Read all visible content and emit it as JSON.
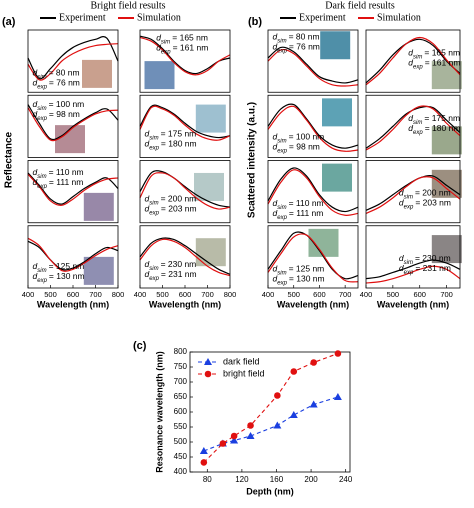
{
  "panel_a": {
    "label": "(a)",
    "title": "Bright field results",
    "y_label": "Reflectance"
  },
  "panel_b": {
    "label": "(b)",
    "title": "Dark field results",
    "y_label": "Scattered intensity (a.u.)"
  },
  "chart_data": [
    {
      "type": "line",
      "x": [
        400,
        450,
        500,
        550,
        600,
        650,
        700,
        750,
        800
      ],
      "xlim": [
        400,
        800
      ],
      "ylim": [
        0,
        1
      ],
      "swatch": "#c9a08e",
      "annotations": [
        [
          "d",
          "sim",
          "= 80 nm"
        ],
        [
          "d",
          "exp",
          "= 76 nm"
        ]
      ],
      "series": [
        {
          "name": "Experiment",
          "color": "#000000",
          "values": [
            0.55,
            0.22,
            0.38,
            0.58,
            0.72,
            0.8,
            0.85,
            0.87,
            0.5
          ]
        },
        {
          "name": "Simulation",
          "color": "#e01010",
          "values": [
            0.45,
            0.2,
            0.3,
            0.5,
            0.62,
            0.7,
            0.75,
            0.77,
            0.78
          ]
        }
      ]
    },
    {
      "type": "line",
      "x": [
        400,
        450,
        500,
        550,
        600,
        650,
        700,
        750,
        800
      ],
      "xlim": [
        400,
        800
      ],
      "ylim": [
        0,
        1
      ],
      "swatch": "#b58b95",
      "annotations": [
        [
          "d",
          "sim",
          "= 100 nm"
        ],
        [
          "d",
          "exp",
          "= 98 nm"
        ]
      ],
      "series": [
        {
          "name": "Experiment",
          "color": "#000000",
          "values": [
            0.85,
            0.55,
            0.3,
            0.35,
            0.5,
            0.62,
            0.72,
            0.78,
            0.6
          ]
        },
        {
          "name": "Simulation",
          "color": "#e01010",
          "values": [
            0.8,
            0.5,
            0.28,
            0.33,
            0.48,
            0.6,
            0.7,
            0.75,
            0.76
          ]
        }
      ]
    },
    {
      "type": "line",
      "x": [
        400,
        450,
        500,
        550,
        600,
        650,
        700,
        750,
        800
      ],
      "xlim": [
        400,
        800
      ],
      "ylim": [
        0,
        1
      ],
      "swatch": "#9888a8",
      "annotations": [
        [
          "d",
          "sim",
          "= 110 nm"
        ],
        [
          "d",
          "exp",
          "= 111 nm"
        ]
      ],
      "series": [
        {
          "name": "Experiment",
          "color": "#000000",
          "values": [
            0.8,
            0.6,
            0.38,
            0.3,
            0.42,
            0.55,
            0.65,
            0.72,
            0.55
          ]
        },
        {
          "name": "Simulation",
          "color": "#e01010",
          "values": [
            0.78,
            0.58,
            0.35,
            0.28,
            0.38,
            0.52,
            0.63,
            0.7,
            0.72
          ]
        }
      ]
    },
    {
      "type": "line",
      "x": [
        400,
        450,
        500,
        550,
        600,
        650,
        700,
        750,
        800
      ],
      "xlim": [
        400,
        800
      ],
      "ylim": [
        0,
        1
      ],
      "swatch": "#8f8fb2",
      "xticks": [
        400,
        500,
        600,
        700,
        800
      ],
      "x_label": "Wavelength (nm)",
      "annotations": [
        [
          "d",
          "sim",
          "= 125 nm"
        ],
        [
          "d",
          "exp",
          "= 130 nm"
        ]
      ],
      "series": [
        {
          "name": "Experiment",
          "color": "#000000",
          "values": [
            0.75,
            0.65,
            0.45,
            0.3,
            0.32,
            0.42,
            0.55,
            0.65,
            0.6
          ]
        },
        {
          "name": "Simulation",
          "color": "#e01010",
          "values": [
            0.8,
            0.68,
            0.45,
            0.28,
            0.3,
            0.4,
            0.52,
            0.62,
            0.68
          ]
        }
      ]
    },
    {
      "type": "line",
      "x": [
        400,
        450,
        500,
        550,
        600,
        650,
        700,
        750,
        800
      ],
      "xlim": [
        400,
        800
      ],
      "ylim": [
        0,
        1
      ],
      "swatch": "#6f8fb8",
      "annotations": [
        [
          "d",
          "sim",
          "= 165 nm"
        ],
        [
          "d",
          "exp",
          "= 161 nm"
        ]
      ],
      "series": [
        {
          "name": "Experiment",
          "color": "#000000",
          "values": [
            0.9,
            0.85,
            0.7,
            0.5,
            0.35,
            0.3,
            0.38,
            0.5,
            0.55
          ]
        },
        {
          "name": "Simulation",
          "color": "#e01010",
          "values": [
            0.88,
            0.82,
            0.68,
            0.48,
            0.33,
            0.28,
            0.35,
            0.5,
            0.6
          ]
        }
      ]
    },
    {
      "type": "line",
      "x": [
        400,
        450,
        500,
        550,
        600,
        650,
        700,
        750,
        800
      ],
      "xlim": [
        400,
        800
      ],
      "ylim": [
        0,
        1
      ],
      "swatch": "#9ec0d0",
      "annotations": [
        [
          "d",
          "sim",
          "= 175 nm"
        ],
        [
          "d",
          "exp",
          "= 180 nm"
        ]
      ],
      "series": [
        {
          "name": "Experiment",
          "color": "#000000",
          "values": [
            0.5,
            0.82,
            0.8,
            0.7,
            0.55,
            0.42,
            0.35,
            0.32,
            0.35
          ]
        },
        {
          "name": "Simulation",
          "color": "#e01010",
          "values": [
            0.45,
            0.8,
            0.78,
            0.68,
            0.52,
            0.38,
            0.3,
            0.28,
            0.35
          ]
        }
      ]
    },
    {
      "type": "line",
      "x": [
        400,
        450,
        500,
        550,
        600,
        650,
        700,
        750,
        800
      ],
      "xlim": [
        400,
        800
      ],
      "ylim": [
        0,
        1
      ],
      "swatch": "#b5c9c8",
      "annotations": [
        [
          "d",
          "sim",
          "= 200 nm"
        ],
        [
          "d",
          "exp",
          "= 203 nm"
        ]
      ],
      "series": [
        {
          "name": "Experiment",
          "color": "#000000",
          "values": [
            0.5,
            0.8,
            0.82,
            0.72,
            0.58,
            0.45,
            0.35,
            0.28,
            0.25
          ]
        },
        {
          "name": "Simulation",
          "color": "#e01010",
          "values": [
            0.4,
            0.75,
            0.8,
            0.72,
            0.56,
            0.4,
            0.28,
            0.22,
            0.25
          ]
        }
      ]
    },
    {
      "type": "line",
      "x": [
        400,
        450,
        500,
        550,
        600,
        650,
        700,
        750,
        800
      ],
      "xlim": [
        400,
        800
      ],
      "ylim": [
        0,
        1
      ],
      "swatch": "#b8bba8",
      "xticks": [
        400,
        500,
        600,
        700,
        800
      ],
      "x_label": "Wavelength (nm)",
      "annotations": [
        [
          "d",
          "sim",
          "= 230 nm"
        ],
        [
          "d",
          "exp",
          "= 231 nm"
        ]
      ],
      "series": [
        {
          "name": "Experiment",
          "color": "#000000",
          "values": [
            0.5,
            0.72,
            0.8,
            0.78,
            0.68,
            0.55,
            0.42,
            0.3,
            0.22
          ]
        },
        {
          "name": "Simulation",
          "color": "#e01010",
          "values": [
            0.45,
            0.68,
            0.78,
            0.75,
            0.65,
            0.5,
            0.35,
            0.25,
            0.2
          ]
        }
      ]
    },
    {
      "type": "line",
      "x": [
        400,
        450,
        500,
        550,
        600,
        650,
        700,
        750
      ],
      "xlim": [
        400,
        750
      ],
      "ylim": [
        0,
        1
      ],
      "swatch": "#4f8fa8",
      "annotations": [
        [
          "d",
          "sim",
          "= 80 nm"
        ],
        [
          "d",
          "exp",
          "= 76 nm"
        ]
      ],
      "series": [
        {
          "name": "Experiment",
          "color": "#000000",
          "values": [
            0.55,
            0.72,
            0.65,
            0.45,
            0.25,
            0.18,
            0.15,
            0.2
          ]
        },
        {
          "name": "Simulation",
          "color": "#e01010",
          "values": [
            0.5,
            0.68,
            0.62,
            0.42,
            0.22,
            0.12,
            0.1,
            0.12
          ]
        }
      ]
    },
    {
      "type": "line",
      "x": [
        400,
        450,
        500,
        550,
        600,
        650,
        700,
        750
      ],
      "xlim": [
        400,
        750
      ],
      "ylim": [
        0,
        1
      ],
      "swatch": "#5da2b5",
      "annotations": [
        [
          "d",
          "sim",
          "= 100 nm"
        ],
        [
          "d",
          "exp",
          "= 98 nm"
        ]
      ],
      "series": [
        {
          "name": "Experiment",
          "color": "#000000",
          "values": [
            0.5,
            0.78,
            0.85,
            0.62,
            0.35,
            0.2,
            0.15,
            0.2
          ]
        },
        {
          "name": "Simulation",
          "color": "#e01010",
          "values": [
            0.45,
            0.72,
            0.82,
            0.6,
            0.32,
            0.15,
            0.1,
            0.12
          ]
        }
      ]
    },
    {
      "type": "line",
      "x": [
        400,
        450,
        500,
        550,
        600,
        650,
        700,
        750
      ],
      "xlim": [
        400,
        750
      ],
      "ylim": [
        0,
        1
      ],
      "swatch": "#6ba7a0",
      "annotations": [
        [
          "d",
          "sim",
          "= 110 nm"
        ],
        [
          "d",
          "exp",
          "= 111 nm"
        ]
      ],
      "series": [
        {
          "name": "Experiment",
          "color": "#000000",
          "values": [
            0.35,
            0.7,
            0.88,
            0.75,
            0.45,
            0.25,
            0.18,
            0.25
          ]
        },
        {
          "name": "Simulation",
          "color": "#e01010",
          "values": [
            0.3,
            0.65,
            0.85,
            0.72,
            0.42,
            0.2,
            0.12,
            0.15
          ]
        }
      ]
    },
    {
      "type": "line",
      "x": [
        400,
        450,
        500,
        550,
        600,
        650,
        700,
        750
      ],
      "xlim": [
        400,
        750
      ],
      "ylim": [
        0,
        1
      ],
      "swatch": "#8fb49a",
      "xticks": [
        400,
        500,
        600,
        700
      ],
      "x_label": "Wavelength (nm)",
      "annotations": [
        [
          "d",
          "sim",
          "= 125 nm"
        ],
        [
          "d",
          "exp",
          "= 130 nm"
        ]
      ],
      "series": [
        {
          "name": "Experiment",
          "color": "#000000",
          "values": [
            0.3,
            0.6,
            0.88,
            0.85,
            0.6,
            0.3,
            0.15,
            0.2
          ]
        },
        {
          "name": "Simulation",
          "color": "#e01010",
          "values": [
            0.25,
            0.55,
            0.82,
            0.85,
            0.62,
            0.32,
            0.12,
            0.1
          ]
        }
      ]
    },
    {
      "type": "line",
      "x": [
        400,
        450,
        500,
        550,
        600,
        650,
        700,
        750
      ],
      "xlim": [
        400,
        750
      ],
      "ylim": [
        0,
        1
      ],
      "swatch": "#a8b49c",
      "annotations": [
        [
          "d",
          "sim",
          "= 165 nm"
        ],
        [
          "d",
          "exp",
          "= 161 nm"
        ]
      ],
      "series": [
        {
          "name": "Experiment",
          "color": "#000000",
          "values": [
            0.15,
            0.35,
            0.6,
            0.78,
            0.85,
            0.75,
            0.5,
            0.3
          ]
        },
        {
          "name": "Simulation",
          "color": "#e01010",
          "values": [
            0.12,
            0.3,
            0.55,
            0.78,
            0.88,
            0.78,
            0.52,
            0.28
          ]
        }
      ]
    },
    {
      "type": "line",
      "x": [
        400,
        450,
        500,
        550,
        600,
        650,
        700,
        750
      ],
      "xlim": [
        400,
        750
      ],
      "ylim": [
        0,
        1
      ],
      "swatch": "#9aa88c",
      "annotations": [
        [
          "d",
          "sim",
          "= 175 nm"
        ],
        [
          "d",
          "exp",
          "= 180 nm"
        ]
      ],
      "series": [
        {
          "name": "Experiment",
          "color": "#000000",
          "values": [
            0.15,
            0.3,
            0.5,
            0.7,
            0.8,
            0.8,
            0.6,
            0.4
          ]
        },
        {
          "name": "Simulation",
          "color": "#e01010",
          "values": [
            0.12,
            0.25,
            0.45,
            0.68,
            0.82,
            0.78,
            0.55,
            0.35
          ]
        }
      ]
    },
    {
      "type": "line",
      "x": [
        400,
        450,
        500,
        550,
        600,
        650,
        700,
        750
      ],
      "xlim": [
        400,
        750
      ],
      "ylim": [
        0,
        1
      ],
      "swatch": "#9c8f80",
      "annotations": [
        [
          "d",
          "sim",
          "= 200 nm"
        ],
        [
          "d",
          "exp",
          "= 203 nm"
        ]
      ],
      "series": [
        {
          "name": "Experiment",
          "color": "#000000",
          "values": [
            0.2,
            0.3,
            0.45,
            0.6,
            0.72,
            0.75,
            0.6,
            0.45
          ]
        },
        {
          "name": "Simulation",
          "color": "#e01010",
          "values": [
            0.15,
            0.25,
            0.4,
            0.58,
            0.72,
            0.72,
            0.55,
            0.38
          ]
        }
      ]
    },
    {
      "type": "line",
      "x": [
        400,
        450,
        500,
        550,
        600,
        650,
        700,
        750
      ],
      "xlim": [
        400,
        750
      ],
      "ylim": [
        0,
        1
      ],
      "swatch": "#8a8585",
      "xticks": [
        400,
        500,
        600,
        700
      ],
      "x_label": "Wavelength (nm)",
      "annotations": [
        [
          "d",
          "sim",
          "= 230 nm"
        ],
        [
          "d",
          "exp",
          "= 231 nm"
        ]
      ],
      "series": [
        {
          "name": "Experiment",
          "color": "#000000",
          "values": [
            0.15,
            0.18,
            0.25,
            0.32,
            0.4,
            0.45,
            0.4,
            0.3
          ]
        },
        {
          "name": "Simulation",
          "color": "#e01010",
          "values": [
            0.08,
            0.1,
            0.15,
            0.22,
            0.3,
            0.35,
            0.3,
            0.15
          ]
        }
      ]
    },
    {
      "type": "scatter-line",
      "panel_label": "(c)",
      "x_label": "Depth (nm)",
      "y_label": "Resonance wavelength (nm)",
      "x": [
        76,
        98,
        111,
        130,
        161,
        180,
        203,
        231
      ],
      "xlim": [
        60,
        245
      ],
      "xticks": [
        80,
        120,
        160,
        200,
        240
      ],
      "ylim": [
        400,
        800
      ],
      "yticks": [
        400,
        450,
        500,
        550,
        600,
        650,
        700,
        750,
        800
      ],
      "legend": "upper left",
      "series": [
        {
          "name": "dark field",
          "color": "#1a3fe0",
          "marker": "triangle",
          "values": [
            470,
            495,
            505,
            520,
            555,
            590,
            625,
            650
          ]
        },
        {
          "name": "bright field",
          "color": "#e01010",
          "marker": "circle",
          "values": [
            432,
            495,
            520,
            555,
            655,
            735,
            765,
            795
          ]
        }
      ]
    }
  ]
}
